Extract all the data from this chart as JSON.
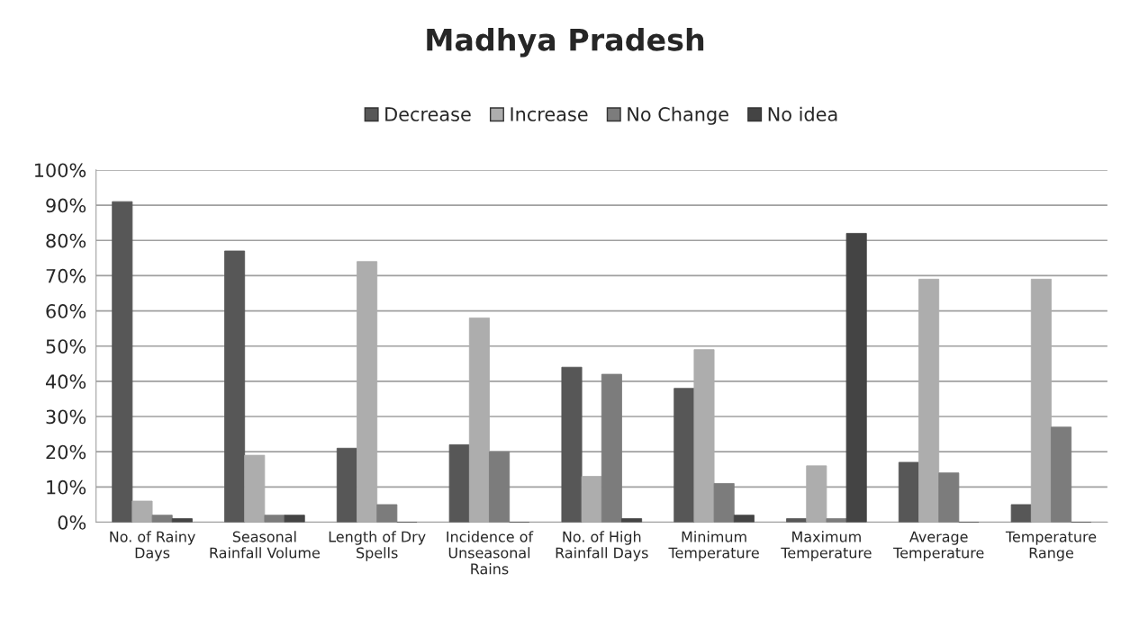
{
  "chart_data": {
    "type": "bar",
    "title": "Madhya Pradesh",
    "categories": [
      "No. of Rainy Days",
      "Seasonal Rainfall Volume",
      "Length of Dry Spells",
      "Incidence of Unseasonal Rains",
      "No. of High Rainfall Days",
      "Minimum Temperature",
      "Maximum Temperature",
      "Average Temperature",
      "Temperature Range"
    ],
    "series": [
      {
        "name": "Decrease",
        "color": "#575757",
        "values": [
          91,
          77,
          21,
          22,
          44,
          38,
          1,
          17,
          5
        ]
      },
      {
        "name": "Increase",
        "color": "#adadad",
        "values": [
          6,
          19,
          74,
          58,
          13,
          49,
          16,
          69,
          69
        ]
      },
      {
        "name": "No Change",
        "color": "#7c7c7c",
        "values": [
          2,
          2,
          5,
          20,
          42,
          11,
          1,
          14,
          27
        ]
      },
      {
        "name": "No idea",
        "color": "#444444",
        "values": [
          1,
          2,
          0,
          0,
          1,
          2,
          82,
          0,
          0
        ]
      }
    ],
    "ylim": [
      0,
      100
    ],
    "yticks": [
      {
        "value": 0,
        "label": "0%"
      },
      {
        "value": 10,
        "label": "10%"
      },
      {
        "value": 20,
        "label": "20%"
      },
      {
        "value": 30,
        "label": "30%"
      },
      {
        "value": 40,
        "label": "40%"
      },
      {
        "value": 50,
        "label": "50%"
      },
      {
        "value": 60,
        "label": "60%"
      },
      {
        "value": 70,
        "label": "70%"
      },
      {
        "value": 80,
        "label": "80%"
      },
      {
        "value": 90,
        "label": "90%"
      },
      {
        "value": 100,
        "label": "100%"
      }
    ],
    "grid": "y",
    "legend": "top"
  }
}
